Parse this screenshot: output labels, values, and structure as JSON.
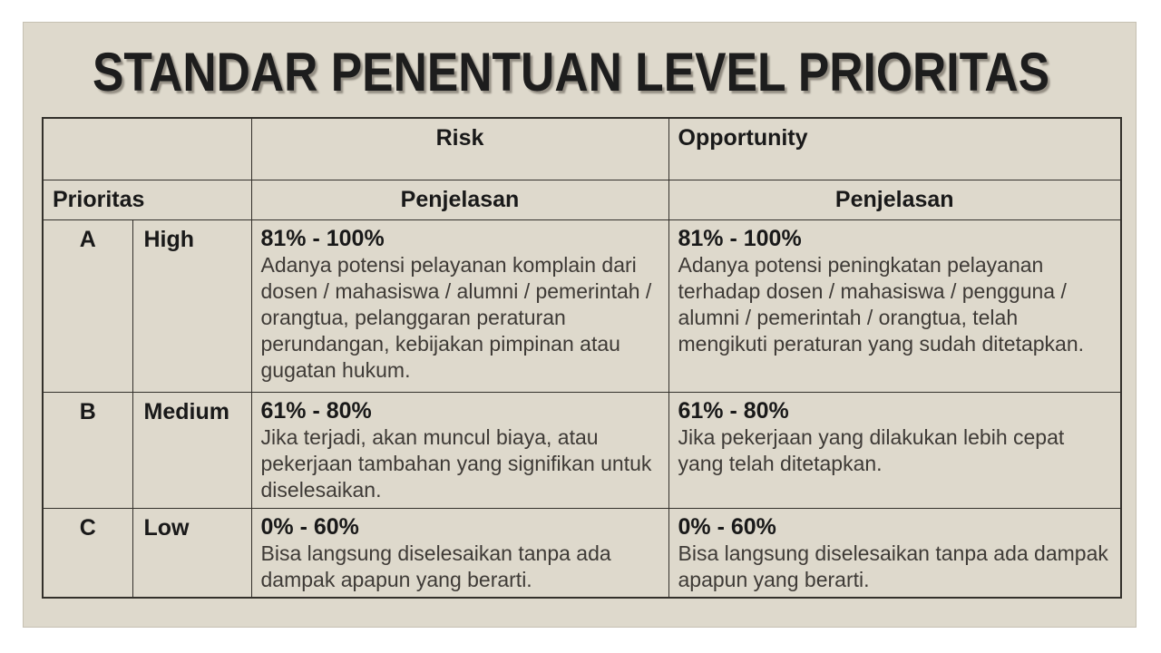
{
  "slide": {
    "title": "STANDAR PENENTUAN LEVEL PRIORITAS",
    "colors": {
      "page_bg": "#ffffff",
      "slide_bg": "#ded9cc",
      "table_border": "#33302b",
      "title_color": "#1d1d1d",
      "body_text_color": "#3e3a36",
      "bold_text_color": "#191919"
    },
    "table": {
      "header": {
        "corner_label": "",
        "risk_label": "Risk",
        "opportunity_label": "Opportunity",
        "prioritas_label": "Prioritas",
        "risk_subheader": "Penjelasan",
        "opportunity_subheader": "Penjelasan"
      },
      "rows": [
        {
          "code": "A",
          "level": "High",
          "risk_range": "81% - 100%",
          "risk_desc": "Adanya potensi pelayanan komplain dari dosen / mahasiswa / alumni / pemerintah / orangtua, pelanggaran peraturan perundangan, kebijakan pimpinan atau gugatan hukum.",
          "opportunity_range": "81% - 100%",
          "opportunity_desc": "Adanya potensi peningkatan pelayanan terhadap dosen / mahasiswa / pengguna / alumni / pemerintah / orangtua, telah mengikuti peraturan yang sudah ditetapkan."
        },
        {
          "code": "B",
          "level": "Medium",
          "risk_range": "61% - 80%",
          "risk_desc": "Jika terjadi, akan muncul biaya, atau pekerjaan tambahan yang signifikan untuk diselesaikan.",
          "opportunity_range": "61% - 80%",
          "opportunity_desc": "Jika pekerjaan yang dilakukan lebih cepat yang telah ditetapkan."
        },
        {
          "code": "C",
          "level": "Low",
          "risk_range": "0% - 60%",
          "risk_desc": "Bisa langsung diselesaikan tanpa ada dampak apapun yang berarti.",
          "opportunity_range": "0% - 60%",
          "opportunity_desc": "Bisa langsung diselesaikan tanpa ada dampak apapun yang berarti."
        }
      ]
    }
  }
}
